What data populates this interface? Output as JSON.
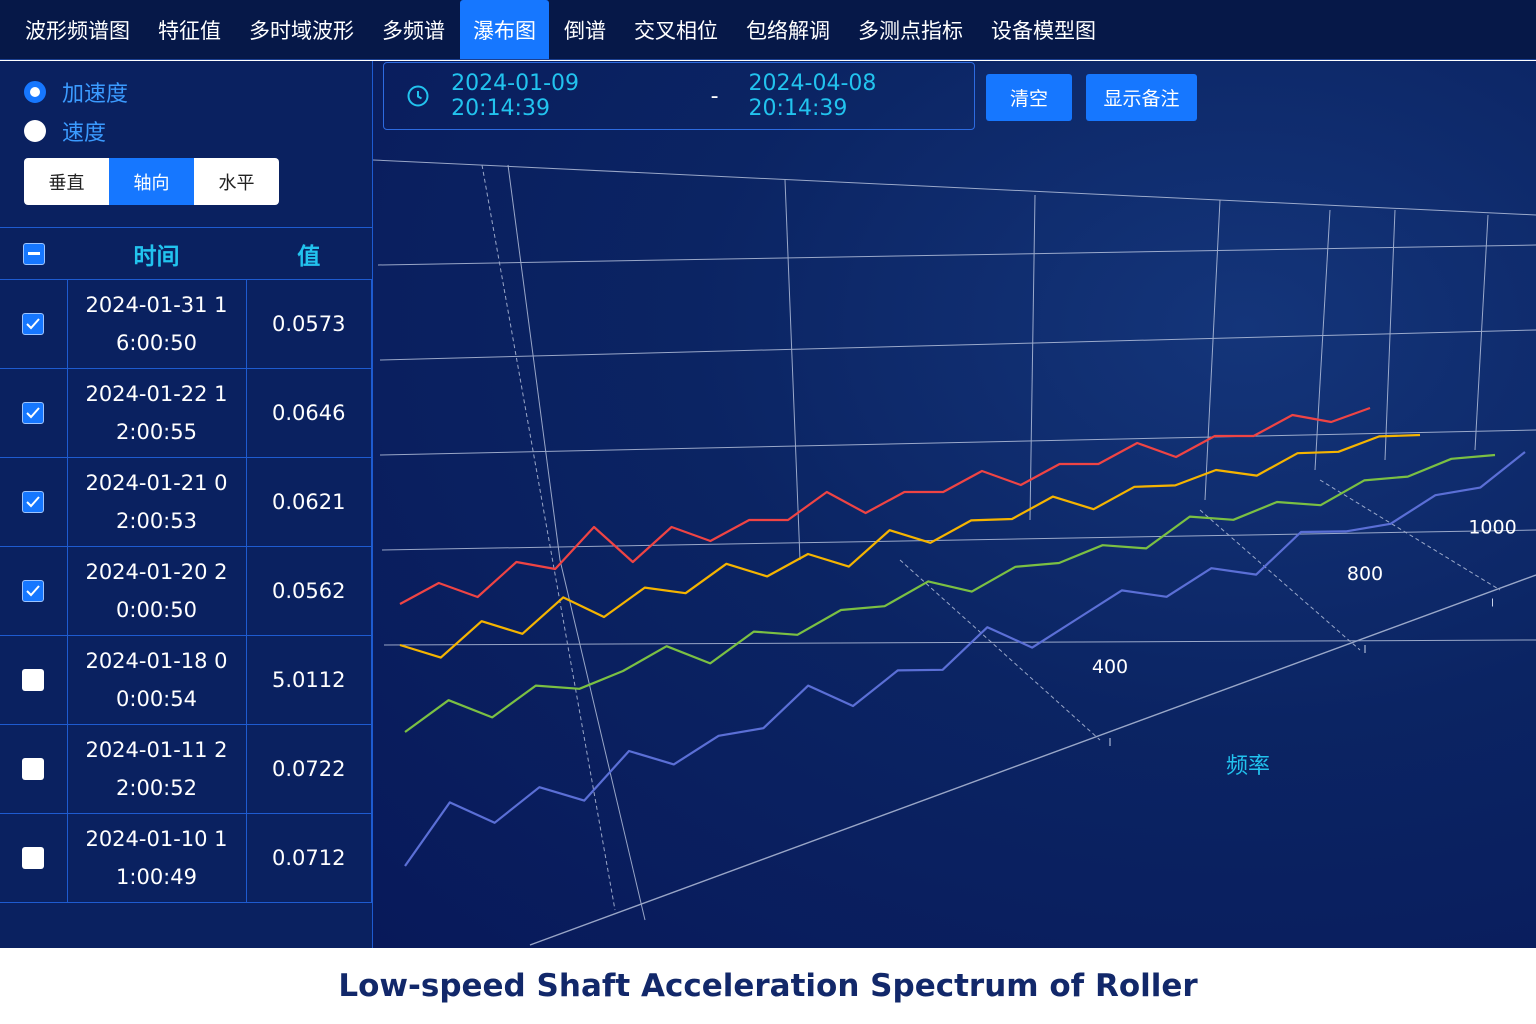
{
  "nav": {
    "tabs": [
      "波形频谱图",
      "特征值",
      "多时域波形",
      "多频谱",
      "瀑布图",
      "倒谱",
      "交叉相位",
      "包络解调",
      "多测点指标",
      "设备模型图"
    ],
    "active": 4
  },
  "sidebar": {
    "radios": [
      "加速度",
      "速度"
    ],
    "selected": 0,
    "directions": [
      "垂直",
      "轴向",
      "水平"
    ],
    "active_direction": 1,
    "table": {
      "headers": [
        "时间",
        "值"
      ],
      "rows": [
        {
          "time": "2024-01-31 16:00:50",
          "value": 0.0573,
          "checked": true
        },
        {
          "time": "2024-01-22 12:00:55",
          "value": 0.0646,
          "checked": true
        },
        {
          "time": "2024-01-21 02:00:53",
          "value": 0.0621,
          "checked": true
        },
        {
          "time": "2024-01-20 20:00:50",
          "value": 0.0562,
          "checked": true
        },
        {
          "time": "2024-01-18 00:00:54",
          "value": 5.0112,
          "checked": false
        },
        {
          "time": "2024-01-11 22:00:52",
          "value": 0.0722,
          "checked": false
        },
        {
          "time": "2024-01-10 11:00:49",
          "value": 0.0712,
          "checked": false
        }
      ]
    }
  },
  "toolbar": {
    "start": "2024-01-09 20:14:39",
    "separator": "-",
    "end": "2024-04-08 20:14:39",
    "buttons": [
      "清空",
      "显示备注"
    ]
  },
  "chart_data": {
    "type": "waterfall",
    "x_label": "频率",
    "xlim": [
      0,
      1000
    ],
    "xticks": [
      400,
      800,
      1000
    ],
    "x": [
      0,
      40,
      80,
      120,
      160,
      200,
      240,
      280,
      320,
      360,
      400,
      440,
      480,
      520,
      560,
      600,
      640,
      680,
      720,
      760,
      800,
      840,
      880,
      920,
      960,
      1000
    ],
    "series": [
      {
        "color": "#ef4444",
        "values": [
          0.03,
          0.05,
          0.02,
          0.06,
          0.04,
          0.09,
          0.03,
          0.07,
          0.04,
          0.06,
          0.05,
          0.08,
          0.04,
          0.06,
          0.05,
          0.07,
          0.04,
          0.06,
          0.05,
          0.07,
          0.04,
          0.06,
          0.05,
          0.07,
          0.05,
          0.06
        ]
      },
      {
        "color": "#f5b400",
        "values": [
          0.05,
          0.02,
          0.06,
          0.03,
          0.07,
          0.03,
          0.06,
          0.04,
          0.07,
          0.04,
          0.06,
          0.03,
          0.07,
          0.04,
          0.06,
          0.05,
          0.07,
          0.04,
          0.06,
          0.05,
          0.06,
          0.04,
          0.06,
          0.05,
          0.06,
          0.05
        ]
      },
      {
        "color": "#7bc043",
        "values": [
          0.04,
          0.07,
          0.03,
          0.06,
          0.04,
          0.05,
          0.07,
          0.03,
          0.06,
          0.04,
          0.06,
          0.05,
          0.07,
          0.04,
          0.06,
          0.05,
          0.06,
          0.04,
          0.07,
          0.05,
          0.06,
          0.04,
          0.06,
          0.05,
          0.06,
          0.05
        ]
      },
      {
        "color": "#5b6fd6",
        "values": [
          0.02,
          0.09,
          0.04,
          0.07,
          0.03,
          0.08,
          0.04,
          0.06,
          0.05,
          0.09,
          0.04,
          0.07,
          0.05,
          0.09,
          0.04,
          0.06,
          0.08,
          0.05,
          0.07,
          0.04,
          0.08,
          0.06,
          0.05,
          0.07,
          0.06,
          0.09
        ]
      }
    ]
  },
  "caption": "Low-speed Shaft Acceleration Spectrum of Roller"
}
